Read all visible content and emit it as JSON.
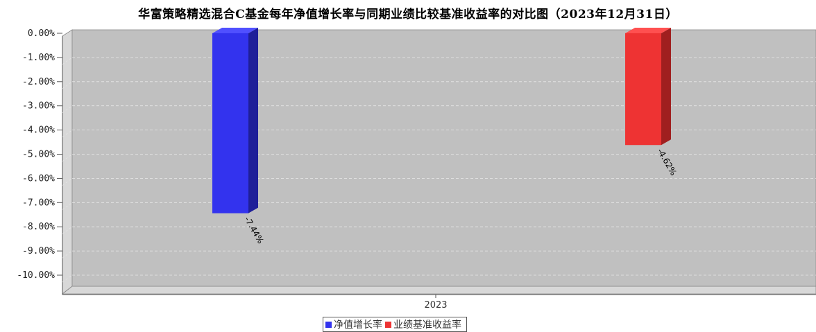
{
  "chart_data": {
    "type": "bar",
    "title": "华富策略精选混合C基金每年净值增长率与同期业绩比较基准收益率的对比图（2023年12月31日）",
    "categories": [
      "2023"
    ],
    "series": [
      {
        "name": "净值增长率",
        "values": [
          -7.44
        ],
        "color": "#3333ee",
        "side_color": "#1f1f99",
        "top_color": "#5050ff",
        "label": "-7.44%"
      },
      {
        "name": "业绩基准收益率",
        "values": [
          -4.62
        ],
        "color": "#ee3333",
        "side_color": "#a01f1f",
        "top_color": "#ff5050",
        "label": "-4.62%"
      }
    ],
    "ylim": [
      -10.5,
      0
    ],
    "y_ticks": [
      "0.00%",
      "-1.00%",
      "-2.00%",
      "-3.00%",
      "-4.00%",
      "-5.00%",
      "-6.00%",
      "-7.00%",
      "-8.00%",
      "-9.00%",
      "-10.00%"
    ],
    "y_tick_values": [
      0,
      -1,
      -2,
      -3,
      -4,
      -5,
      -6,
      -7,
      -8,
      -9,
      -10
    ],
    "grid": true,
    "legend_position": "bottom",
    "plot_background": "#c0c0c0"
  }
}
